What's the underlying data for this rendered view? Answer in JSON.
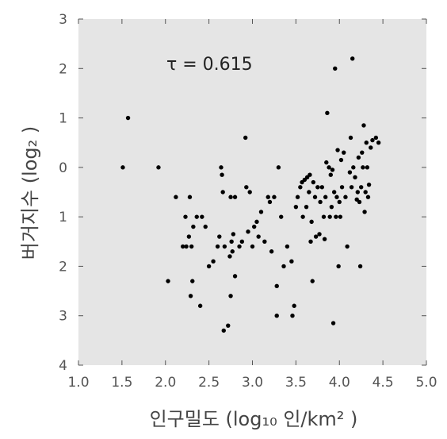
{
  "chart_data": {
    "type": "scatter",
    "title": "",
    "xlabel": "인구밀도 (log₁₀ 인/km² )",
    "ylabel": "버거지수 (log₂ )",
    "xlim": [
      1.0,
      5.0
    ],
    "ylim": [
      4,
      -3
    ],
    "x_ticks": [
      1.0,
      1.5,
      2.0,
      2.5,
      3.0,
      3.5,
      4.0,
      4.5,
      5.0
    ],
    "x_tick_labels": [
      "1.0",
      "1.5",
      "2.0",
      "2.5",
      "3.0",
      "3.5",
      "4.0",
      "4.5",
      "5.0"
    ],
    "y_ticks": [
      -3,
      -2,
      -1,
      0,
      1,
      2,
      3,
      4
    ],
    "y_tick_labels": [
      "3",
      "2",
      "1",
      "0",
      "1",
      "2",
      "3",
      "4"
    ],
    "grid": false,
    "background": "#e5e5e5",
    "point_color": "#000000",
    "annotation": "τ = 0.615",
    "points": [
      [
        1.51,
        0.0
      ],
      [
        1.57,
        -1.0
      ],
      [
        1.92,
        0.0
      ],
      [
        2.03,
        2.3
      ],
      [
        2.12,
        0.6
      ],
      [
        2.2,
        1.6
      ],
      [
        2.23,
        1.0
      ],
      [
        2.24,
        1.6
      ],
      [
        2.27,
        1.4
      ],
      [
        2.28,
        0.6
      ],
      [
        2.29,
        2.6
      ],
      [
        2.3,
        1.6
      ],
      [
        2.31,
        2.3
      ],
      [
        2.32,
        1.2
      ],
      [
        2.36,
        1.0
      ],
      [
        2.4,
        2.8
      ],
      [
        2.42,
        1.0
      ],
      [
        2.46,
        1.2
      ],
      [
        2.5,
        2.0
      ],
      [
        2.55,
        1.9
      ],
      [
        2.6,
        1.6
      ],
      [
        2.62,
        1.4
      ],
      [
        2.64,
        0.0
      ],
      [
        2.65,
        0.15
      ],
      [
        2.66,
        0.5
      ],
      [
        2.67,
        3.3
      ],
      [
        2.68,
        1.6
      ],
      [
        2.72,
        3.2
      ],
      [
        2.74,
        1.8
      ],
      [
        2.75,
        2.6
      ],
      [
        2.75,
        0.6
      ],
      [
        2.76,
        1.5
      ],
      [
        2.77,
        1.7
      ],
      [
        2.78,
        1.35
      ],
      [
        2.8,
        2.2
      ],
      [
        2.8,
        0.6
      ],
      [
        2.85,
        1.6
      ],
      [
        2.88,
        1.5
      ],
      [
        2.92,
        -0.6
      ],
      [
        2.93,
        0.4
      ],
      [
        2.95,
        1.3
      ],
      [
        2.97,
        0.5
      ],
      [
        3.0,
        1.6
      ],
      [
        3.02,
        1.2
      ],
      [
        3.05,
        1.1
      ],
      [
        3.07,
        1.4
      ],
      [
        3.1,
        0.9
      ],
      [
        3.14,
        1.5
      ],
      [
        3.18,
        0.6
      ],
      [
        3.2,
        0.7
      ],
      [
        3.22,
        1.7
      ],
      [
        3.25,
        0.6
      ],
      [
        3.28,
        3.0
      ],
      [
        3.28,
        2.4
      ],
      [
        3.3,
        0.0
      ],
      [
        3.33,
        1.0
      ],
      [
        3.36,
        2.0
      ],
      [
        3.4,
        1.6
      ],
      [
        3.45,
        1.9
      ],
      [
        3.46,
        3.0
      ],
      [
        3.48,
        2.8
      ],
      [
        3.5,
        0.8
      ],
      [
        3.52,
        0.6
      ],
      [
        3.55,
        0.4
      ],
      [
        3.57,
        0.3
      ],
      [
        3.58,
        1.0
      ],
      [
        3.6,
        0.25
      ],
      [
        3.62,
        0.8
      ],
      [
        3.63,
        0.2
      ],
      [
        3.65,
        0.5
      ],
      [
        3.66,
        0.15
      ],
      [
        3.67,
        1.5
      ],
      [
        3.68,
        1.1
      ],
      [
        3.69,
        2.3
      ],
      [
        3.7,
        0.3
      ],
      [
        3.72,
        0.6
      ],
      [
        3.73,
        1.4
      ],
      [
        3.75,
        0.4
      ],
      [
        3.77,
        1.35
      ],
      [
        3.78,
        0.7
      ],
      [
        3.8,
        0.4
      ],
      [
        3.82,
        1.0
      ],
      [
        3.83,
        1.45
      ],
      [
        3.84,
        0.6
      ],
      [
        3.85,
        -0.1
      ],
      [
        3.86,
        -1.1
      ],
      [
        3.88,
        0.0
      ],
      [
        3.89,
        1.0
      ],
      [
        3.9,
        0.15
      ],
      [
        3.91,
        0.8
      ],
      [
        3.92,
        0.05
      ],
      [
        3.93,
        3.15
      ],
      [
        3.94,
        0.5
      ],
      [
        3.95,
        -2.0
      ],
      [
        3.96,
        1.0
      ],
      [
        3.97,
        0.6
      ],
      [
        3.98,
        -0.35
      ],
      [
        3.99,
        2.0
      ],
      [
        4.0,
        0.7
      ],
      [
        4.01,
        1.0
      ],
      [
        4.02,
        -0.15
      ],
      [
        4.03,
        0.4
      ],
      [
        4.05,
        -0.3
      ],
      [
        4.07,
        0.6
      ],
      [
        4.09,
        1.6
      ],
      [
        4.12,
        0.1
      ],
      [
        4.13,
        -0.6
      ],
      [
        4.14,
        0.4
      ],
      [
        4.15,
        -2.2
      ],
      [
        4.16,
        0.0
      ],
      [
        4.18,
        0.2
      ],
      [
        4.2,
        0.65
      ],
      [
        4.21,
        0.5
      ],
      [
        4.22,
        -0.2
      ],
      [
        4.23,
        0.7
      ],
      [
        4.24,
        2.0
      ],
      [
        4.25,
        0.4
      ],
      [
        4.26,
        -0.3
      ],
      [
        4.27,
        0.0
      ],
      [
        4.28,
        -0.85
      ],
      [
        4.29,
        0.9
      ],
      [
        4.3,
        0.5
      ],
      [
        4.31,
        -0.5
      ],
      [
        4.32,
        0.0
      ],
      [
        4.33,
        0.6
      ],
      [
        4.34,
        0.35
      ],
      [
        4.36,
        -0.4
      ],
      [
        4.38,
        -0.55
      ],
      [
        4.42,
        -0.6
      ],
      [
        4.45,
        -0.5
      ]
    ]
  }
}
